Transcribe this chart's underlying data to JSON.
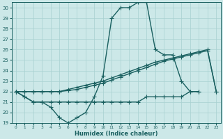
{
  "xlabel": "Humidex (Indice chaleur)",
  "xlim": [
    -0.5,
    23.5
  ],
  "ylim": [
    19,
    30.5
  ],
  "yticks": [
    19,
    20,
    21,
    22,
    23,
    24,
    25,
    26,
    27,
    28,
    29,
    30
  ],
  "xticks": [
    0,
    1,
    2,
    3,
    4,
    5,
    6,
    7,
    8,
    9,
    10,
    11,
    12,
    13,
    14,
    15,
    16,
    17,
    18,
    19,
    20,
    21,
    22,
    23
  ],
  "background_color": "#cce8e8",
  "grid_color": "#a8d0d0",
  "line_color": "#1a6060",
  "line_width": 1.0,
  "marker": "+",
  "marker_size": 4,
  "series": [
    [
      22,
      21.5,
      21,
      21,
      20.5,
      19.5,
      19,
      19.5,
      20,
      21.5,
      23.5,
      29,
      30,
      30,
      30.5,
      30.5,
      26,
      25.5,
      25.5,
      23,
      22,
      22
    ],
    [
      22,
      21.5,
      21,
      21,
      21,
      21,
      21,
      21,
      21,
      21,
      21,
      21,
      21,
      21,
      21,
      21.5,
      21.5,
      21.5,
      21.5,
      21.5,
      22,
      22
    ],
    [
      22,
      22,
      22,
      22,
      22,
      22,
      22.2,
      22.4,
      22.6,
      22.8,
      23.0,
      23.3,
      23.6,
      23.9,
      24.2,
      24.5,
      24.8,
      25.0,
      25.2,
      25.4,
      25.6,
      25.8,
      26.0,
      22
    ],
    [
      22,
      22,
      22,
      22,
      22,
      22,
      22.1,
      22.2,
      22.4,
      22.6,
      22.8,
      23.1,
      23.4,
      23.7,
      24.0,
      24.3,
      24.6,
      24.9,
      25.1,
      25.3,
      25.5,
      25.7,
      25.9,
      22
    ]
  ],
  "series_x": [
    [
      0,
      1,
      2,
      3,
      4,
      5,
      6,
      7,
      8,
      9,
      10,
      11,
      12,
      13,
      14,
      15,
      16,
      17,
      18,
      19,
      20,
      21
    ],
    [
      0,
      1,
      2,
      3,
      4,
      5,
      6,
      7,
      8,
      9,
      10,
      11,
      12,
      13,
      14,
      15,
      16,
      17,
      18,
      19,
      20,
      21
    ],
    [
      0,
      1,
      2,
      3,
      4,
      5,
      6,
      7,
      8,
      9,
      10,
      11,
      12,
      13,
      14,
      15,
      16,
      17,
      18,
      19,
      20,
      21,
      22,
      23
    ],
    [
      0,
      1,
      2,
      3,
      4,
      5,
      6,
      7,
      8,
      9,
      10,
      11,
      12,
      13,
      14,
      15,
      16,
      17,
      18,
      19,
      20,
      21,
      22,
      23
    ]
  ]
}
